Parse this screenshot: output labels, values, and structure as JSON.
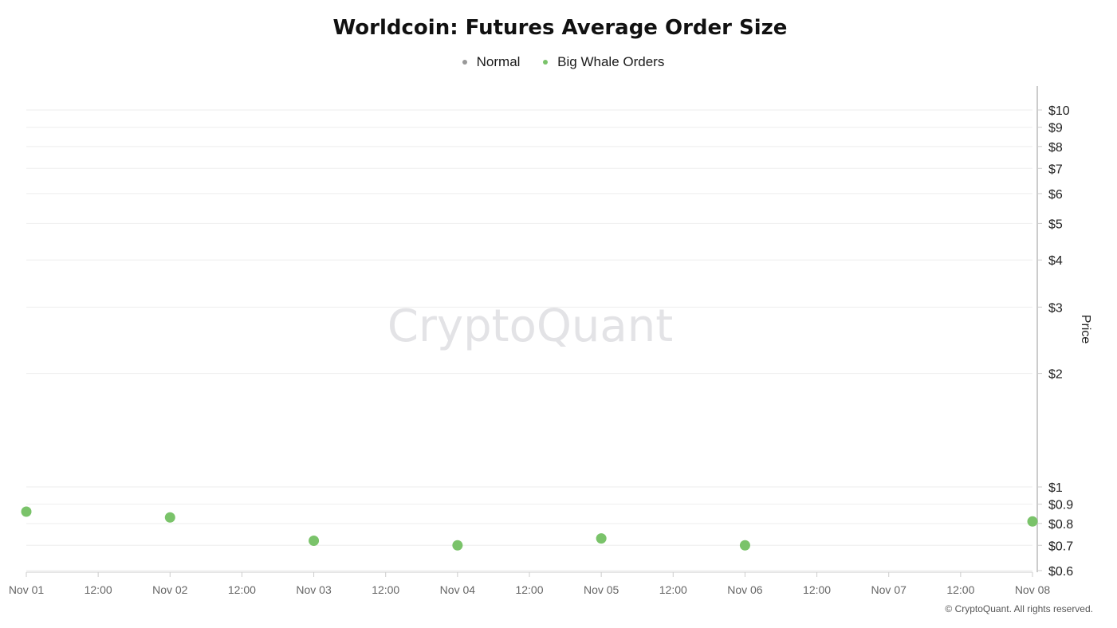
{
  "chart_data": {
    "type": "scatter",
    "title": "Worldcoin: Futures Average Order Size",
    "legend": [
      {
        "name": "Normal",
        "color": "#999999"
      },
      {
        "name": "Big Whale Orders",
        "color": "#7ac36a"
      }
    ],
    "x_ticks": [
      "Nov 01",
      "12:00",
      "Nov 02",
      "12:00",
      "Nov 03",
      "12:00",
      "Nov 04",
      "12:00",
      "Nov 05",
      "12:00",
      "Nov 06",
      "12:00",
      "Nov 07",
      "12:00",
      "Nov 08"
    ],
    "y_ticks": [
      {
        "value": 10,
        "label": "$10"
      },
      {
        "value": 9,
        "label": "$9"
      },
      {
        "value": 8,
        "label": "$8"
      },
      {
        "value": 7,
        "label": "$7"
      },
      {
        "value": 6,
        "label": "$6"
      },
      {
        "value": 5,
        "label": "$5"
      },
      {
        "value": 4,
        "label": "$4"
      },
      {
        "value": 3,
        "label": "$3"
      },
      {
        "value": 2,
        "label": "$2"
      },
      {
        "value": 1,
        "label": "$1"
      },
      {
        "value": 0.9,
        "label": "$0.9"
      },
      {
        "value": 0.8,
        "label": "$0.8"
      },
      {
        "value": 0.7,
        "label": "$0.7"
      },
      {
        "value": 0.6,
        "label": "$0.6"
      }
    ],
    "ylabel": "Price",
    "yscale": "log",
    "ylim": [
      0.6,
      12
    ],
    "y_axis_side": "right",
    "grid": true,
    "legend_position": "top-center",
    "series": [
      {
        "name": "Big Whale Orders",
        "color": "#7ac36a",
        "points": [
          {
            "x": "Nov 01",
            "y": 0.86
          },
          {
            "x": "Nov 02",
            "y": 0.83
          },
          {
            "x": "Nov 03",
            "y": 0.72
          },
          {
            "x": "Nov 04",
            "y": 0.7
          },
          {
            "x": "Nov 05",
            "y": 0.73
          },
          {
            "x": "Nov 06",
            "y": 0.7
          },
          {
            "x": "Nov 08",
            "y": 0.81
          }
        ]
      }
    ]
  },
  "watermark": "CryptoQuant",
  "copyright": "© CryptoQuant. All rights reserved."
}
